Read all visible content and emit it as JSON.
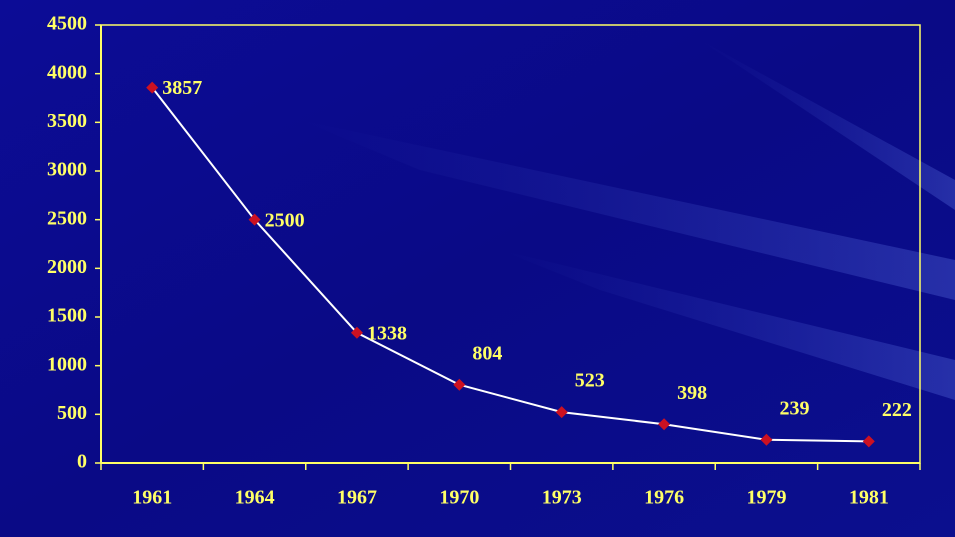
{
  "chart_data": {
    "type": "line",
    "categories": [
      "1961",
      "1964",
      "1967",
      "1970",
      "1973",
      "1976",
      "1979",
      "1981"
    ],
    "values": [
      3857,
      2500,
      1338,
      804,
      523,
      398,
      239,
      222
    ],
    "line_color": "#ffffff",
    "marker_color": "#cc1122",
    "text_color": "#ffff66",
    "ylim": [
      0,
      4500
    ],
    "yticks": [
      0,
      500,
      1000,
      1500,
      2000,
      2500,
      3000,
      3500,
      4000,
      4500
    ],
    "grid": false
  }
}
